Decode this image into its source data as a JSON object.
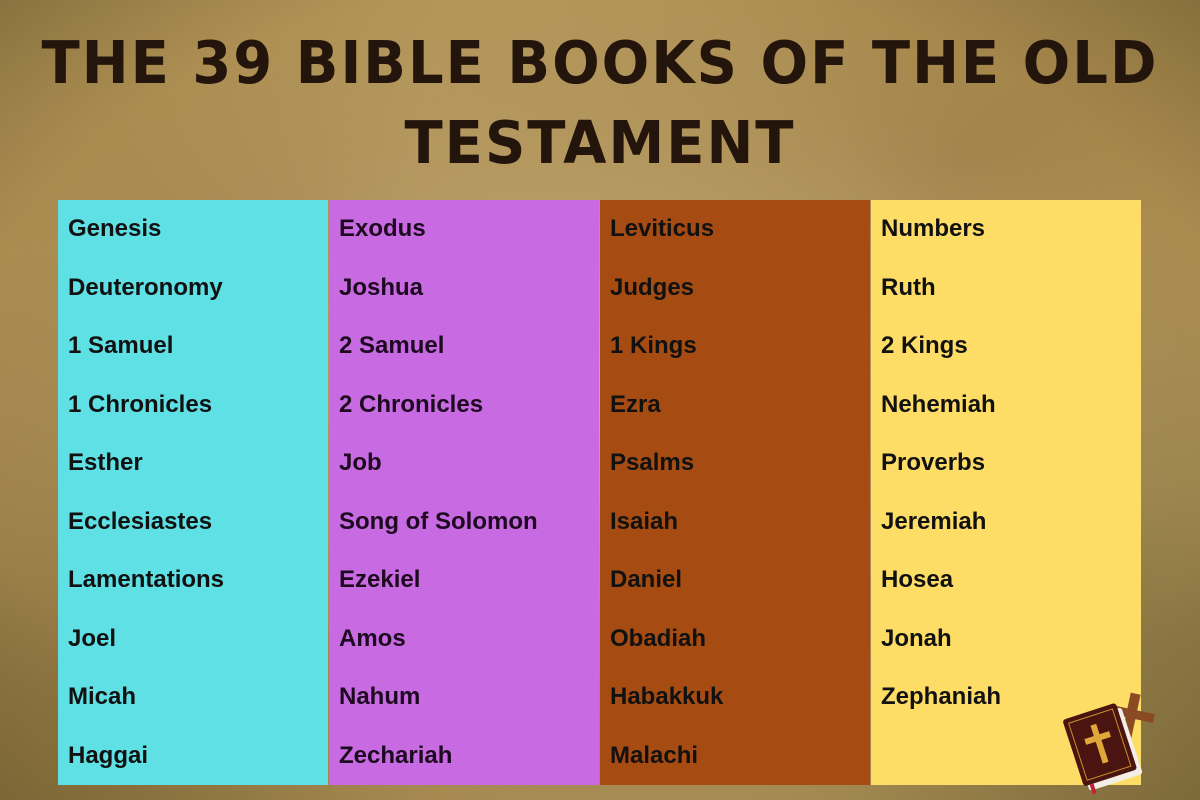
{
  "title": {
    "line1": "The 39 Bible Books of the Old",
    "line2": "Testament"
  },
  "colors": {
    "col1": "#5fe0e4",
    "col2": "#c86ae2",
    "col3": "#a64c12",
    "col4": "#fedd66",
    "title": "#24150c"
  },
  "columns": [
    {
      "books": [
        "Genesis",
        "Deuteronomy",
        "1 Samuel",
        "1 Chronicles",
        "Esther",
        "Ecclesiastes",
        "Lamentations",
        "Joel",
        "Micah",
        "Haggai"
      ]
    },
    {
      "books": [
        "Exodus",
        "Joshua",
        "2 Samuel",
        "2 Chronicles",
        "Job",
        "Song of Solomon",
        "Ezekiel",
        "Amos",
        "Nahum",
        "Zechariah"
      ]
    },
    {
      "books": [
        "Leviticus",
        "Judges",
        "1 Kings",
        "Ezra",
        "Psalms",
        "Isaiah",
        "Daniel",
        "Obadiah",
        "Habakkuk",
        "Malachi"
      ]
    },
    {
      "books": [
        "Numbers",
        "Ruth",
        "2 Kings",
        "Nehemiah",
        "Proverbs",
        "Jeremiah",
        "Hosea",
        "Jonah",
        "Zephaniah",
        ""
      ]
    }
  ],
  "emblem_icon": "bible-with-cross-icon"
}
